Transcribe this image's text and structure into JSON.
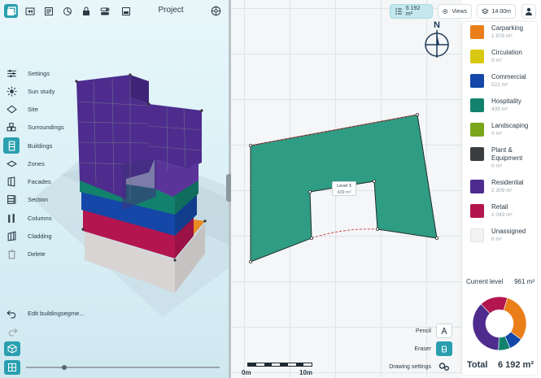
{
  "project": {
    "title": "Project"
  },
  "menu": [
    {
      "name": "settings",
      "label": "Settings"
    },
    {
      "name": "sun-study",
      "label": "Sun study"
    },
    {
      "name": "site",
      "label": "Site"
    },
    {
      "name": "surroundings",
      "label": "Surroundings"
    },
    {
      "name": "buildings",
      "label": "Buildings"
    },
    {
      "name": "zones",
      "label": "Zones"
    },
    {
      "name": "facades",
      "label": "Facades"
    },
    {
      "name": "section",
      "label": "Section"
    },
    {
      "name": "columns",
      "label": "Columns"
    },
    {
      "name": "cladding",
      "label": "Cladding"
    },
    {
      "name": "delete",
      "label": "Delete"
    }
  ],
  "edit_label": "Edit buildingsegme...",
  "top_right": {
    "area": "6 192 m²",
    "views": "Views",
    "height": "14.00m"
  },
  "plan": {
    "level_label": "Level 3",
    "level_area": "439 m²"
  },
  "scale": {
    "start": "0m",
    "end": "10m"
  },
  "tools": {
    "pencil": "Pencil",
    "eraser": "Eraser",
    "drawing_settings": "Drawing settings"
  },
  "legend": [
    {
      "name": "Carparking",
      "area": "1 878 m²",
      "color": "#ea7e19"
    },
    {
      "name": "Circulation",
      "area": "0 m²",
      "color": "#d8c811"
    },
    {
      "name": "Commercial",
      "area": "522 m²",
      "color": "#1447a8"
    },
    {
      "name": "Hospitality",
      "area": "439 m²",
      "color": "#12826d"
    },
    {
      "name": "Landscaping",
      "area": "0 m²",
      "color": "#7aa61c"
    },
    {
      "name": "Plant &",
      "name2": "Equipment",
      "area": "0 m²",
      "color": "#3a3d40"
    },
    {
      "name": "Residential",
      "area": "2 309 m²",
      "color": "#4d2c8e"
    },
    {
      "name": "Retail",
      "area": "1 043 m²",
      "color": "#b3164e"
    },
    {
      "name": "Unassigned",
      "area": "0 m²",
      "color": "#f3f3f3"
    }
  ],
  "current_level": {
    "label": "Current level",
    "value": "961 m²"
  },
  "total": {
    "label": "Total",
    "value": "6 192 m²"
  },
  "chart_data": {
    "type": "pie",
    "categories": [
      "Carparking",
      "Commercial",
      "Hospitality",
      "Residential",
      "Retail"
    ],
    "values": [
      1878,
      522,
      439,
      2309,
      1043
    ],
    "colors": [
      "#ea7e19",
      "#1447a8",
      "#12826d",
      "#4d2c8e",
      "#b3164e"
    ]
  }
}
